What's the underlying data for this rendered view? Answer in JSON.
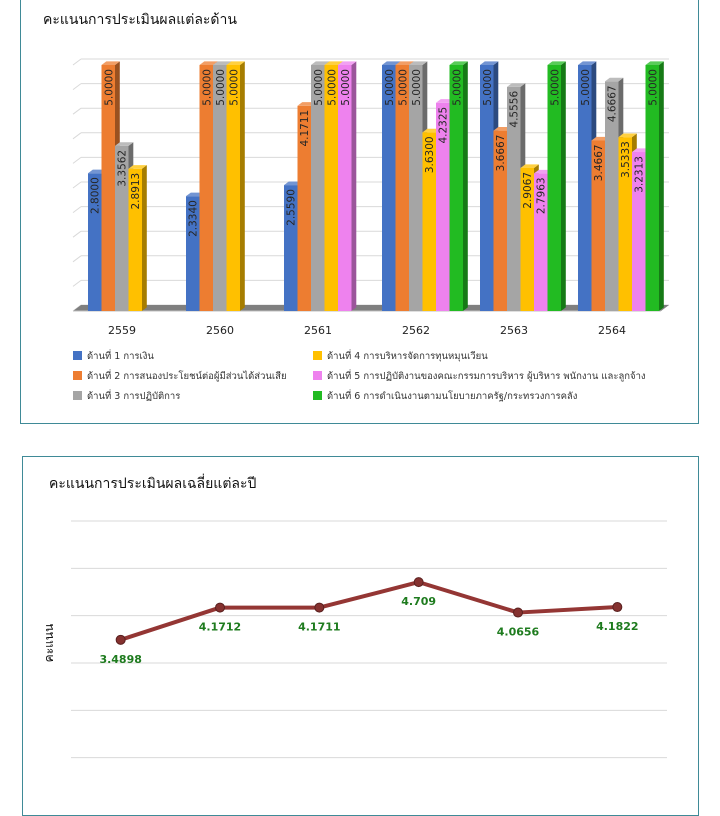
{
  "colors": {
    "panel_border": "#3f8a97",
    "gridline": "#d9d9d9",
    "line_series": "#943634",
    "line_label": "#1e7b1e",
    "series": [
      "#4472c4",
      "#ed7d31",
      "#a5a5a5",
      "#ffc000",
      "#ee82ee",
      "#22bb22"
    ]
  },
  "chart_data": [
    {
      "type": "bar",
      "style": "3d-clustered-column",
      "title": "คะแนนการประเมินผลแต่ละด้าน",
      "categories": [
        "2559",
        "2560",
        "2561",
        "2562",
        "2563",
        "2564"
      ],
      "ylim": [
        0,
        5
      ],
      "grid": true,
      "legend_position": "bottom",
      "series": [
        {
          "name": "ด้านที่ 1 การเงิน",
          "values": [
            2.8,
            2.334,
            2.559,
            5.0,
            5.0,
            5.0
          ],
          "labels": [
            "2.8000",
            "2.3340",
            "2.5590",
            "5.0000",
            "5.0000",
            "5.0000"
          ]
        },
        {
          "name": "ด้านที่ 2 การสนองประโยชน์ต่อผู้มีส่วนได้ส่วนเสีย",
          "values": [
            5.0,
            5.0,
            4.1711,
            5.0,
            3.6667,
            3.4667
          ],
          "labels": [
            "5.0000",
            "5.0000",
            "4.1711",
            "5.0000",
            "3.6667",
            "3.4667"
          ]
        },
        {
          "name": "ด้านที่ 3 การปฏิบัติการ",
          "values": [
            3.3562,
            5.0,
            5.0,
            5.0,
            4.5556,
            4.6667
          ],
          "labels": [
            "3.3562",
            "5.0000",
            "5.0000",
            "5.0000",
            "4.5556",
            "4.6667"
          ]
        },
        {
          "name": "ด้านที่ 4 การบริหารจัดการทุนหมุนเวียน",
          "values": [
            2.8913,
            5.0,
            5.0,
            3.63,
            2.9067,
            3.5333
          ],
          "labels": [
            "2.8913",
            "5.0000",
            "5.0000",
            "3.6300",
            "2.9067",
            "3.5333"
          ]
        },
        {
          "name": "ด้านที่ 5 การปฏิบัติงานของคณะกรรมการบริหาร ผู้บริหาร พนักงาน และลูกจ้าง",
          "values": [
            null,
            null,
            5.0,
            4.2325,
            2.7963,
            3.2313
          ],
          "labels": [
            "",
            "",
            "5.0000",
            "4.2325",
            "2.7963",
            "3.2313"
          ]
        },
        {
          "name": "ด้านที่ 6 การดำเนินงานตามนโยบายภาครัฐ/กระทรวงการคลัง",
          "values": [
            null,
            null,
            null,
            5.0,
            5.0,
            5.0
          ],
          "labels": [
            "",
            "",
            "",
            "5.0000",
            "5.0000",
            "5.0000"
          ]
        }
      ]
    },
    {
      "type": "line",
      "title": "คะแนนการประเมินผลเฉลี่ยแต่ละปี",
      "ylabel": "คะแนน",
      "ylim": [
        0,
        6
      ],
      "grid": true,
      "values": [
        3.4898,
        4.1712,
        4.1711,
        4.709,
        4.0656,
        4.1822
      ],
      "labels": [
        "3.4898",
        "4.1712",
        "4.1711",
        "4.709",
        "4.0656",
        "4.1822"
      ],
      "label_position": [
        "below",
        "below",
        "below",
        "below",
        "below",
        "below"
      ]
    }
  ]
}
